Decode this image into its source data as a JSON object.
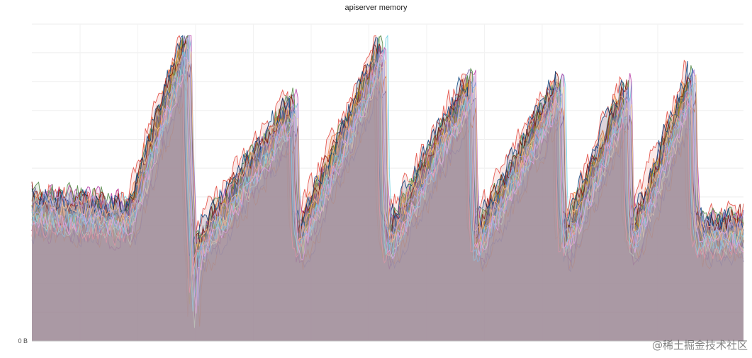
{
  "watermark": "@稀土掘金技术社区",
  "chart_data": {
    "type": "area",
    "title": "apiserver memory",
    "xlabel": "",
    "ylabel": "",
    "ylim": [
      0,
      110
    ],
    "grid": true,
    "legend": "none",
    "y_tick_labels": [
      {
        "value": 0,
        "label": "0 B"
      }
    ],
    "x_tick_count": 10,
    "phases": [
      {
        "start": 0.0,
        "end": 0.137,
        "from": 45,
        "to": 42,
        "sawtooth": false
      },
      {
        "start": 0.137,
        "end": 0.215,
        "from": 45,
        "to": 103,
        "sawtooth": false
      },
      {
        "start": 0.215,
        "end": 0.226,
        "from": 60,
        "to": 2,
        "sawtooth": false
      },
      {
        "start": 0.226,
        "end": 0.365,
        "from": 30,
        "to": 80,
        "sawtooth": true
      },
      {
        "start": 0.365,
        "end": 0.49,
        "from": 30,
        "to": 100,
        "sawtooth": true
      },
      {
        "start": 0.49,
        "end": 0.615,
        "from": 30,
        "to": 88,
        "sawtooth": true
      },
      {
        "start": 0.615,
        "end": 0.74,
        "from": 30,
        "to": 88,
        "sawtooth": true
      },
      {
        "start": 0.74,
        "end": 0.835,
        "from": 30,
        "to": 86,
        "sawtooth": true
      },
      {
        "start": 0.835,
        "end": 0.925,
        "from": 30,
        "to": 90,
        "sawtooth": true
      },
      {
        "start": 0.925,
        "end": 1.0,
        "from": 36,
        "to": 38,
        "sawtooth": false
      }
    ],
    "series": [
      {
        "color": "#7eb26d"
      },
      {
        "color": "#eab839"
      },
      {
        "color": "#6ed0e0"
      },
      {
        "color": "#ef843c"
      },
      {
        "color": "#e24d42"
      },
      {
        "color": "#1f78c1"
      },
      {
        "color": "#ba43a9"
      },
      {
        "color": "#705da0"
      },
      {
        "color": "#508642"
      },
      {
        "color": "#cca300"
      },
      {
        "color": "#447ebc"
      },
      {
        "color": "#c15c17"
      },
      {
        "color": "#890f02"
      },
      {
        "color": "#0a437c"
      },
      {
        "color": "#6d1f62"
      },
      {
        "color": "#584477"
      },
      {
        "color": "#b7dbab"
      },
      {
        "color": "#f4d598"
      },
      {
        "color": "#70dbed"
      },
      {
        "color": "#f9ba8f"
      },
      {
        "color": "#f29191"
      },
      {
        "color": "#82b5d8"
      },
      {
        "color": "#e5a8e2"
      },
      {
        "color": "#aea2e0"
      }
    ]
  }
}
